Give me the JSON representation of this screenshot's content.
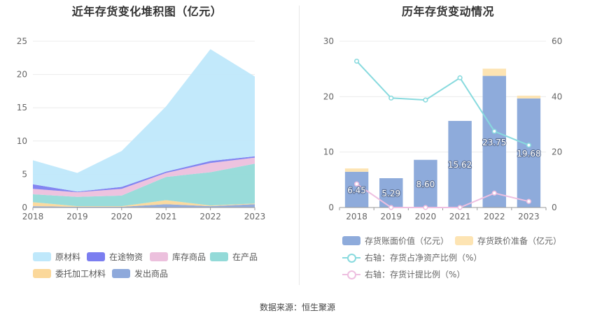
{
  "left_title": "近年存货变化堆积图（亿元）",
  "right_title": "历年存货变动情况",
  "source": "数据来源：恒生聚源",
  "chart_data": [
    {
      "type": "area",
      "stacked": true,
      "title": "近年存货变化堆积图（亿元）",
      "x": [
        "2018",
        "2019",
        "2020",
        "2021",
        "2022",
        "2023"
      ],
      "ylim": [
        0,
        25
      ],
      "yticks": [
        0,
        5,
        10,
        15,
        20,
        25
      ],
      "grid": true,
      "legend_position": "bottom",
      "series": [
        {
          "name": "发出商品",
          "color": "#8ea9db",
          "values": [
            0.2,
            0.1,
            0.1,
            0.5,
            0.2,
            0.5
          ]
        },
        {
          "name": "委托加工材料",
          "color": "#fbd89a",
          "values": [
            0.6,
            0.1,
            0.1,
            0.6,
            0.1,
            0.1
          ]
        },
        {
          "name": "在产品",
          "color": "#93dad8",
          "values": [
            1.2,
            1.4,
            1.6,
            3.5,
            5.0,
            6.0
          ]
        },
        {
          "name": "库存商品",
          "color": "#ecc0dd",
          "values": [
            0.8,
            0.7,
            1.0,
            0.6,
            1.4,
            0.9
          ]
        },
        {
          "name": "在途物资",
          "color": "#7b7ef0",
          "values": [
            0.7,
            0.1,
            0.3,
            0.2,
            0.3,
            0.2
          ]
        },
        {
          "name": "原材料",
          "color": "#bfe8fb",
          "values": [
            3.6,
            2.8,
            5.4,
            9.8,
            16.8,
            12.0
          ]
        }
      ],
      "legend_order": [
        "原材料",
        "在途物资",
        "库存商品",
        "在产品",
        "委托加工材料",
        "发出商品"
      ]
    },
    {
      "type": "bar",
      "title": "历年存货变动情况",
      "categories": [
        "2018",
        "2019",
        "2020",
        "2021",
        "2022",
        "2023"
      ],
      "ylim": [
        0,
        30
      ],
      "yticks": [
        0,
        10,
        20,
        30
      ],
      "y2lim": [
        0,
        60
      ],
      "y2ticks": [
        0,
        20,
        40,
        60
      ],
      "grid": true,
      "legend_position": "bottom",
      "series": [
        {
          "name": "存货账面价值（亿元）",
          "kind": "bar",
          "color": "#8eabdb",
          "values": [
            6.45,
            5.29,
            8.6,
            15.62,
            23.75,
            19.68
          ],
          "labels": [
            "6.45",
            "5.29",
            "8.60",
            "15.62",
            "23.75",
            "19.68"
          ]
        },
        {
          "name": "存货跌价准备（亿元）",
          "kind": "bar",
          "color": "#fde4b3",
          "values": [
            0.6,
            0.0,
            0.0,
            0.0,
            1.3,
            0.5
          ]
        },
        {
          "name": "右轴：存货占净资产比例（%）",
          "kind": "line",
          "axis": "right",
          "color": "#88dade",
          "values": [
            52.8,
            39.5,
            38.8,
            46.8,
            27.5,
            22.5
          ]
        },
        {
          "name": "右轴：存货计提比例（%）",
          "kind": "line",
          "axis": "right",
          "color": "#eebfe0",
          "values": [
            8.5,
            0.0,
            0.0,
            0.0,
            5.2,
            2.2
          ]
        }
      ]
    }
  ]
}
